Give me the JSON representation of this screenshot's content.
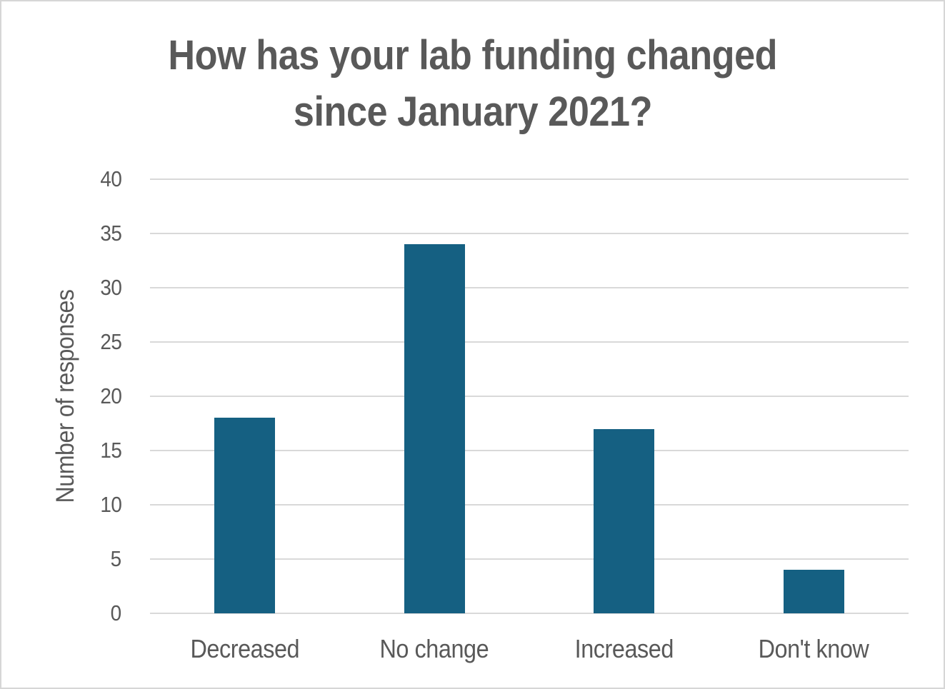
{
  "chart_data": {
    "type": "bar",
    "title": "How has your lab funding changed since January 2021?",
    "title_lines": [
      "How has your lab funding changed",
      "since January 2021?"
    ],
    "categories": [
      "Decreased",
      "No change",
      "Increased",
      "Don't know"
    ],
    "values": [
      18,
      34,
      17,
      4
    ],
    "xlabel": "",
    "ylabel": "Number of responses",
    "ylim": [
      0,
      40
    ],
    "yticks": [
      0,
      5,
      10,
      15,
      20,
      25,
      30,
      35,
      40
    ],
    "grid": true,
    "legend": false
  },
  "colors": {
    "bar": "#156082",
    "grid": "#d9d9d9",
    "text": "#595959",
    "background": "#ffffff",
    "frame_border": "#d6d6d6"
  }
}
